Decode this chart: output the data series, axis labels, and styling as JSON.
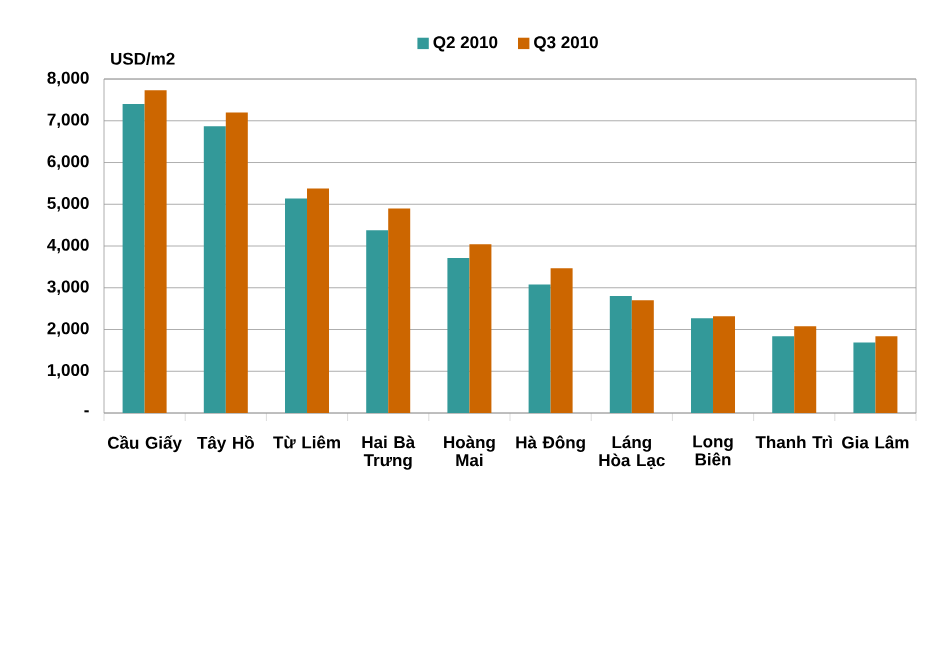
{
  "chart_data": {
    "type": "bar",
    "ylabel": "USD/m2",
    "categories": [
      "Cầu Giấy",
      "Tây Hồ",
      "Từ Liêm",
      "Hai Bà Trưng",
      "Hoàng Mai",
      "Hà Đông",
      "Láng Hòa Lạc",
      "Long Biên",
      "Thanh Trì",
      "Gia Lâm"
    ],
    "series": [
      {
        "name": "Q2 2010",
        "color": "#339999",
        "values": [
          7400,
          6870,
          5140,
          4380,
          3710,
          3080,
          2800,
          2270,
          1840,
          1690
        ]
      },
      {
        "name": "Q3 2010",
        "color": "#cc6600",
        "values": [
          7730,
          7200,
          5380,
          4900,
          4040,
          3470,
          2700,
          2320,
          2080,
          1840
        ]
      }
    ],
    "ylim": [
      0,
      8000
    ],
    "yticks": [
      {
        "value": 0,
        "label": "-"
      },
      {
        "value": 1000,
        "label": "1,000"
      },
      {
        "value": 2000,
        "label": "2,000"
      },
      {
        "value": 3000,
        "label": "3,000"
      },
      {
        "value": 4000,
        "label": "4,000"
      },
      {
        "value": 5000,
        "label": "5,000"
      },
      {
        "value": 6000,
        "label": "6,000"
      },
      {
        "value": 7000,
        "label": "7,000"
      },
      {
        "value": 8000,
        "label": "8,000"
      }
    ],
    "grid": "y",
    "legend": "top"
  }
}
